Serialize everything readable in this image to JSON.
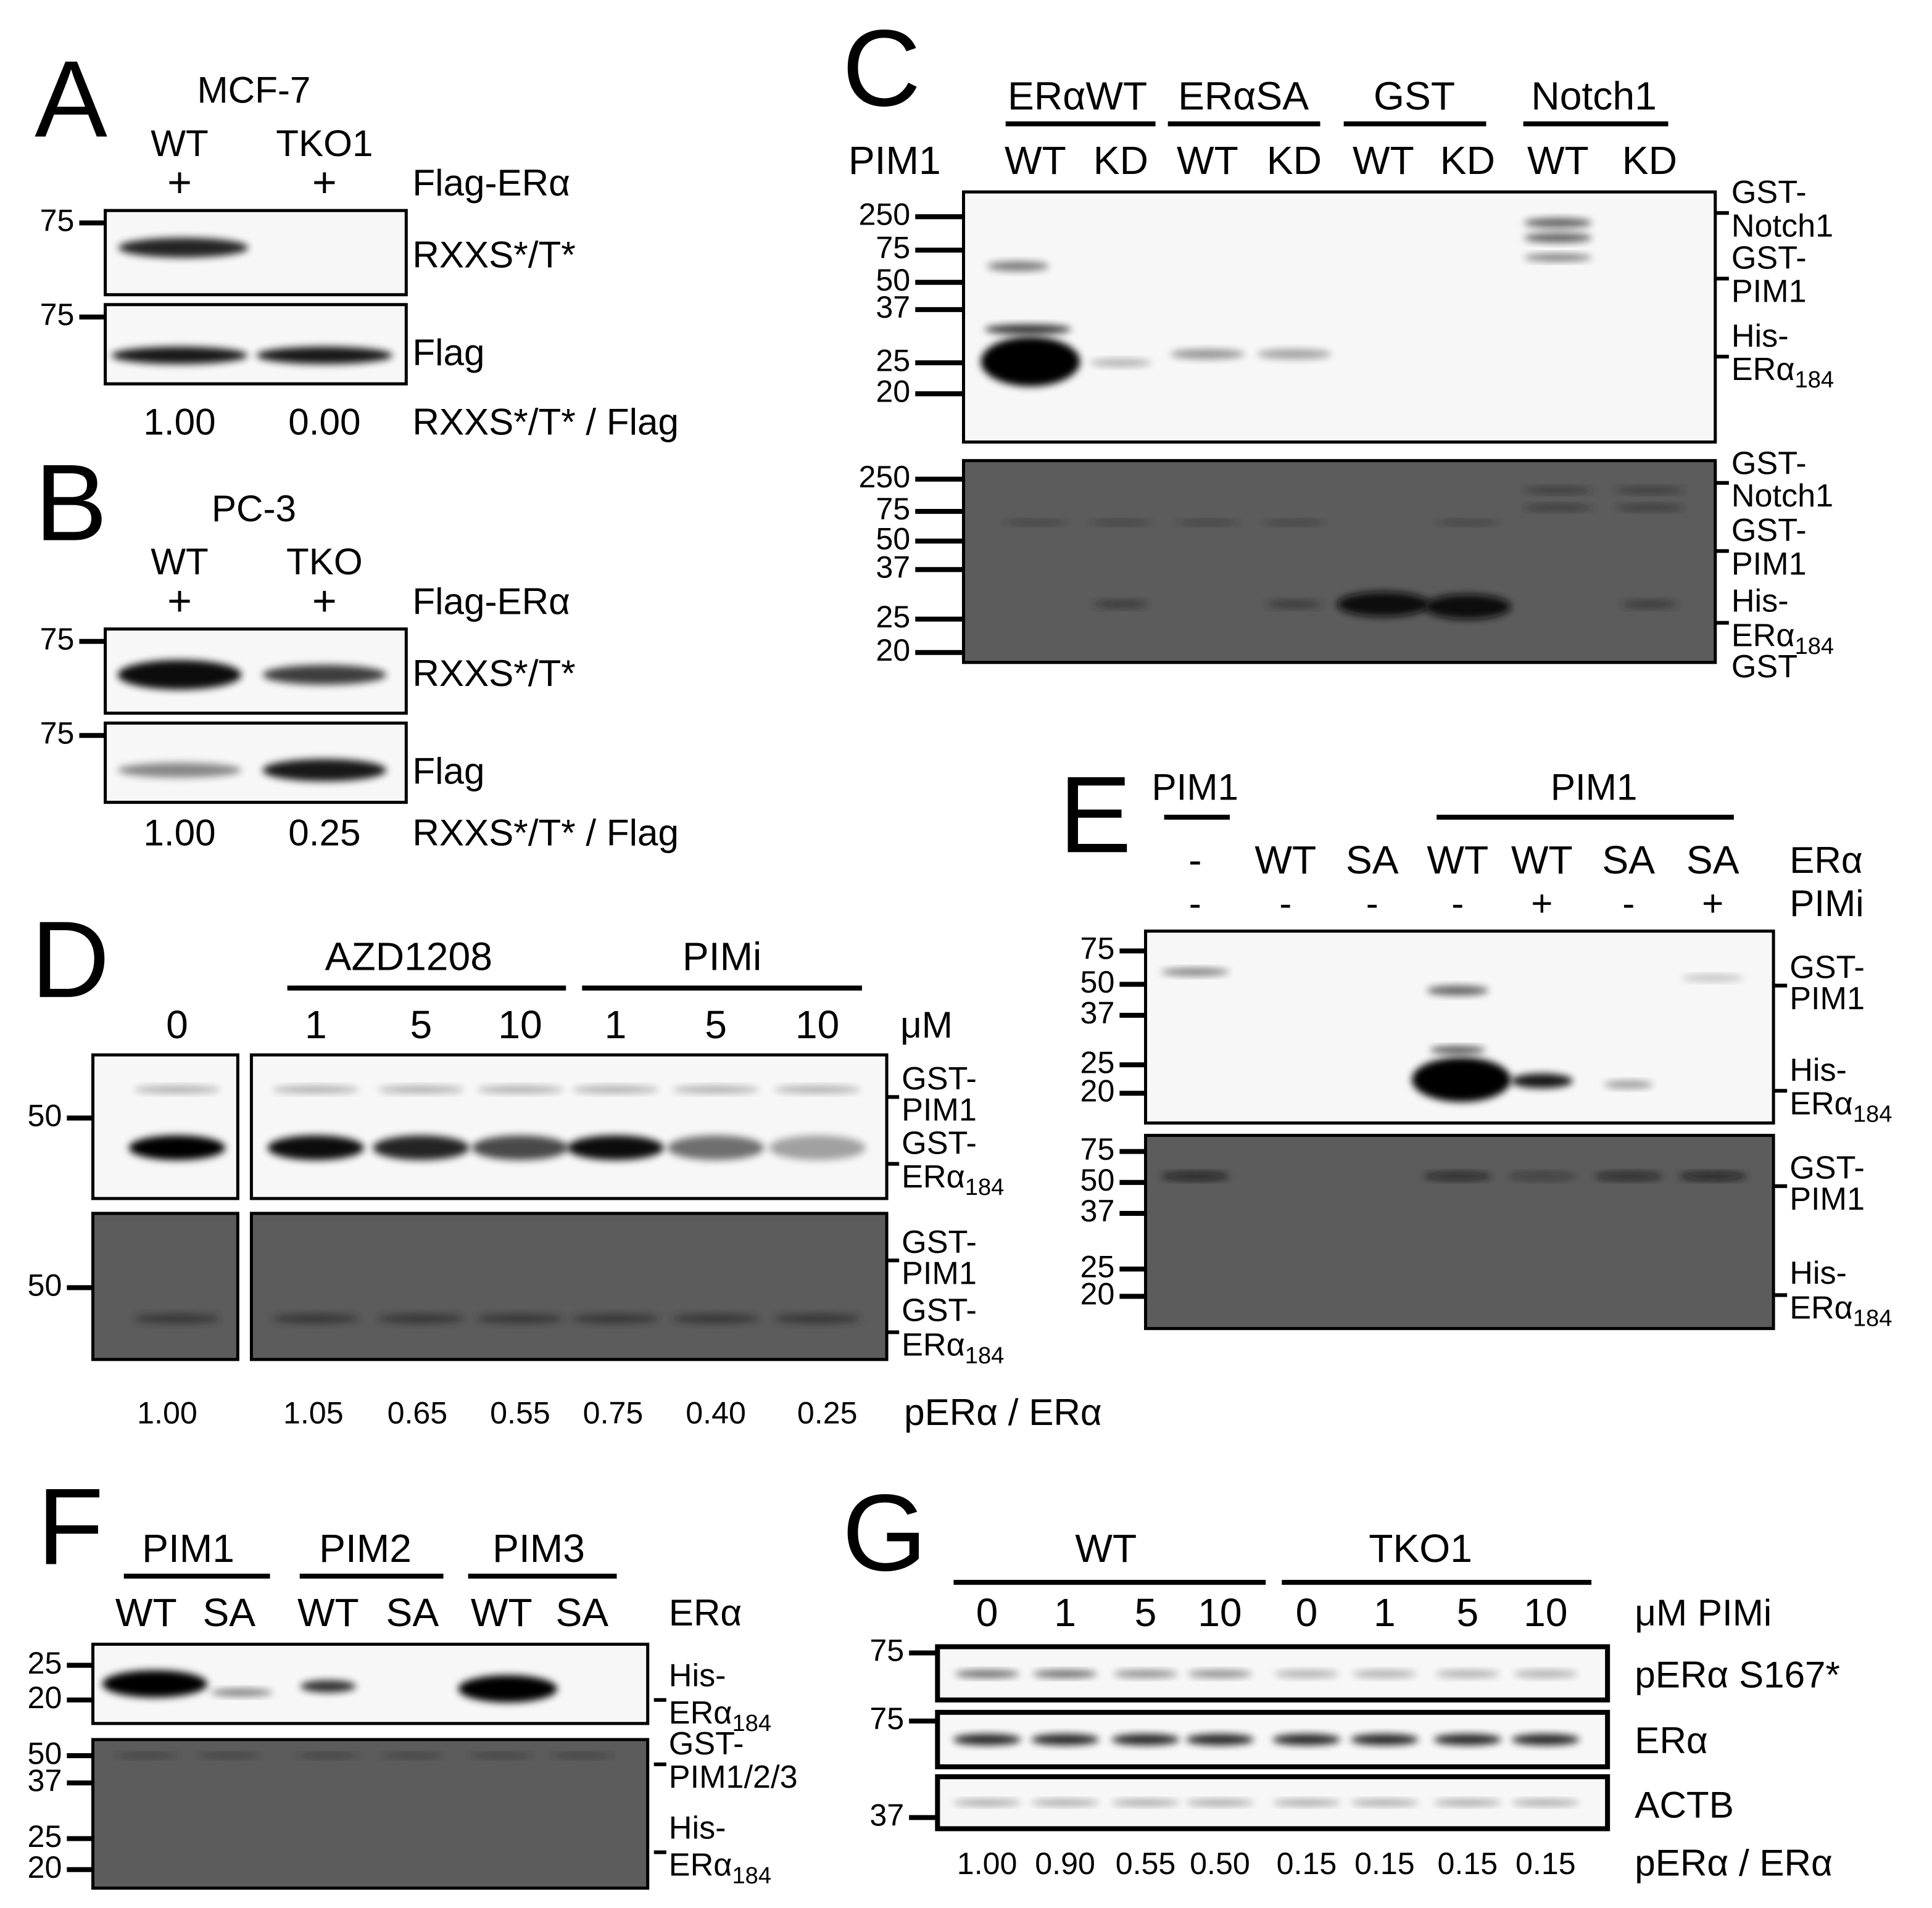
{
  "panels": {
    "A": {
      "letter": "A",
      "cell_line": "MCF-7",
      "lanes": [
        "WT",
        "TKO1"
      ],
      "transfection": [
        "+",
        "+"
      ],
      "transfection_label": "Flag-ERα",
      "markers": [
        "75",
        "75"
      ],
      "blots": [
        "RXXS*/T*",
        "Flag"
      ],
      "ratios": [
        "1.00",
        "0.00"
      ],
      "ratio_label": "RXXS*/T* / Flag"
    },
    "B": {
      "letter": "B",
      "cell_line": "PC-3",
      "lanes": [
        "WT",
        "TKO"
      ],
      "transfection": [
        "+",
        "+"
      ],
      "transfection_label": "Flag-ERα",
      "markers": [
        "75",
        "75"
      ],
      "blots": [
        "RXXS*/T*",
        "Flag"
      ],
      "ratios": [
        "1.00",
        "0.25"
      ],
      "ratio_label": "RXXS*/T* / Flag"
    },
    "C": {
      "letter": "C",
      "substrates": [
        "ERαWT",
        "ERαSA",
        "GST",
        "Notch1"
      ],
      "kinase_label": "PIM1",
      "lanes": [
        "WT",
        "KD",
        "WT",
        "KD",
        "WT",
        "KD",
        "WT",
        "KD"
      ],
      "markers_top": [
        "250",
        "75",
        "50",
        "37",
        "25",
        "20"
      ],
      "markers_bottom": [
        "250",
        "75",
        "50",
        "37",
        "25",
        "20"
      ],
      "labels_top": [
        {
          "prefix": "GST-",
          "name": "Notch1"
        },
        {
          "prefix": "GST-",
          "name": "PIM1"
        },
        {
          "prefix": "His-",
          "name": "ERα",
          "sub": "184"
        }
      ],
      "labels_bottom": [
        {
          "prefix": "GST-",
          "name": "Notch1"
        },
        {
          "prefix": "GST-",
          "name": "PIM1"
        },
        {
          "prefix": "His-",
          "name": "ERα",
          "sub": "184"
        },
        {
          "name": "GST"
        }
      ]
    },
    "D": {
      "letter": "D",
      "inhibitors": [
        "AZD1208",
        "PIMi"
      ],
      "doses": [
        "0",
        "1",
        "5",
        "10",
        "1",
        "5",
        "10"
      ],
      "dose_unit": "μM",
      "markers": [
        "50",
        "50"
      ],
      "labels_top": [
        {
          "prefix": "GST-",
          "name": "PIM1"
        },
        {
          "prefix": "GST-",
          "name": "ERα",
          "sub": "184"
        }
      ],
      "labels_bottom": [
        {
          "prefix": "GST-",
          "name": "PIM1"
        },
        {
          "prefix": "GST-",
          "name": "ERα",
          "sub": "184"
        }
      ],
      "ratios": [
        "1.00",
        "1.05",
        "0.65",
        "0.55",
        "0.75",
        "0.40",
        "0.25"
      ],
      "ratio_label": "pERα / ERα"
    },
    "E": {
      "letter": "E",
      "kinase_headers": [
        "PIM1",
        "PIM1"
      ],
      "era": [
        "-",
        "WT",
        "SA",
        "WT",
        "WT",
        "SA",
        "SA"
      ],
      "era_label": "ERα",
      "pimi": [
        "-",
        "-",
        "-",
        "-",
        "+",
        "-",
        "+"
      ],
      "pimi_label": "PIMi",
      "markers_top": [
        "75",
        "50",
        "37",
        "25",
        "20"
      ],
      "markers_bottom": [
        "75",
        "50",
        "37",
        "25",
        "20"
      ],
      "labels_top": [
        {
          "prefix": "GST-",
          "name": "PIM1"
        },
        {
          "prefix": "His-",
          "name": "ERα",
          "sub": "184"
        }
      ],
      "labels_bottom": [
        {
          "prefix": "GST-",
          "name": "PIM1"
        },
        {
          "prefix": "His-",
          "name": "ERα",
          "sub": "184"
        }
      ]
    },
    "F": {
      "letter": "F",
      "kinases": [
        "PIM1",
        "PIM2",
        "PIM3"
      ],
      "lanes": [
        "WT",
        "SA",
        "WT",
        "SA",
        "WT",
        "SA"
      ],
      "lane_label": "ERα",
      "markers_top": [
        "25",
        "20"
      ],
      "markers_bottom": [
        "50",
        "37",
        "25",
        "20"
      ],
      "labels_top": [
        {
          "prefix": "His-",
          "name": "ERα",
          "sub": "184"
        }
      ],
      "labels_bottom": [
        {
          "prefix": "GST-",
          "name": "PIM1/2/3"
        },
        {
          "prefix": "His-",
          "name": "ERα",
          "sub": "184"
        }
      ]
    },
    "G": {
      "letter": "G",
      "genotypes": [
        "WT",
        "TKO1"
      ],
      "doses": [
        "0",
        "1",
        "5",
        "10",
        "0",
        "1",
        "5",
        "10"
      ],
      "dose_label": "μM  PIMi",
      "markers": [
        "75",
        "75",
        "37"
      ],
      "blots": [
        "pERα S167*",
        "ERα",
        "ACTB"
      ],
      "ratios": [
        "1.00",
        "0.90",
        "0.55",
        "0.50",
        "0.15",
        "0.15",
        "0.15",
        "0.15"
      ],
      "ratio_label": "pERα / ERα"
    }
  }
}
